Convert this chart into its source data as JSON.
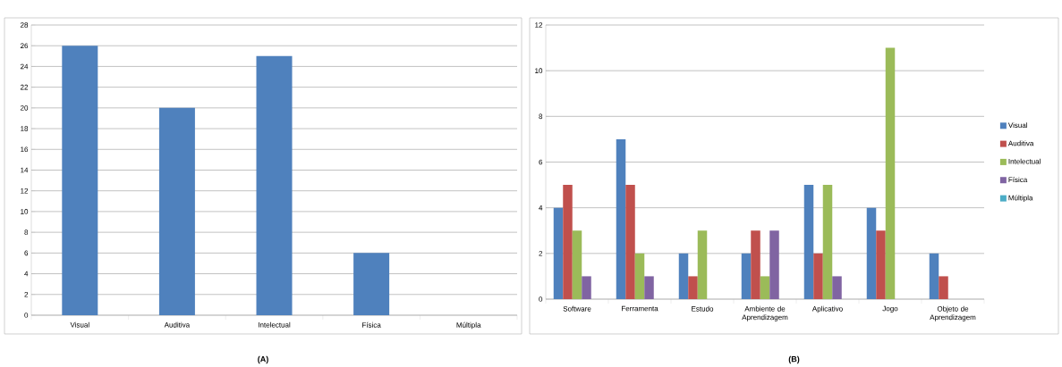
{
  "chart_data": [
    {
      "type": "bar",
      "categories": [
        "Visual",
        "Auditiva",
        "Intelectual",
        "Física",
        "Múltipla"
      ],
      "values": [
        26,
        20,
        25,
        6,
        0
      ],
      "color": "#4f81bd",
      "ylim": [
        0,
        28
      ],
      "yticks": [
        0,
        2,
        4,
        6,
        8,
        10,
        12,
        14,
        16,
        18,
        20,
        22,
        24,
        26,
        28
      ],
      "grid": "y",
      "annotations": [
        "(A)"
      ]
    },
    {
      "type": "bar",
      "categories": [
        "Software",
        "Ferramenta",
        "Estudo",
        "Ambiente de Aprendizagem",
        "Aplicativo",
        "Jogo",
        "Objeto de Aprendizagem"
      ],
      "series": [
        {
          "name": "Visual",
          "color": "#4f81bd",
          "values": [
            4,
            7,
            2,
            2,
            5,
            4,
            2
          ]
        },
        {
          "name": "Auditiva",
          "color": "#c0504d",
          "values": [
            5,
            5,
            1,
            3,
            2,
            3,
            1
          ]
        },
        {
          "name": "Intelectual",
          "color": "#9bbb59",
          "values": [
            3,
            2,
            3,
            1,
            5,
            11,
            0
          ]
        },
        {
          "name": "Física",
          "color": "#8064a2",
          "values": [
            1,
            1,
            0,
            3,
            1,
            0,
            0
          ]
        },
        {
          "name": "Múltipla",
          "color": "#4bacc6",
          "values": [
            0,
            0,
            0,
            0,
            0,
            0,
            0
          ]
        }
      ],
      "ylim": [
        0,
        12
      ],
      "yticks": [
        0,
        2,
        4,
        6,
        8,
        10,
        12
      ],
      "grid": "y",
      "legend": "right",
      "annotations": [
        "(B)"
      ]
    }
  ]
}
